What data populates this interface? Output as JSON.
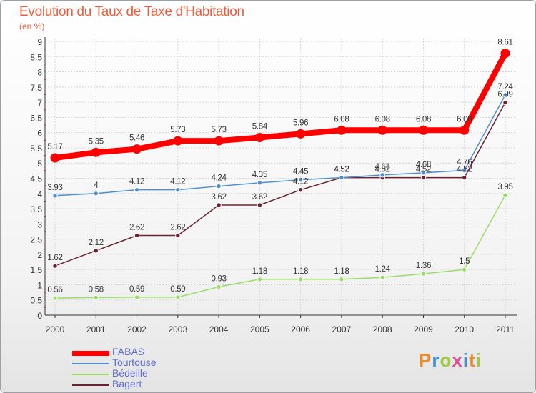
{
  "chart_data": {
    "type": "line",
    "title": "Evolution du Taux de Taxe d'Habitation",
    "subtitle": "(en %)",
    "x": [
      "2000",
      "2001",
      "2002",
      "2003",
      "2004",
      "2005",
      "2006",
      "2007",
      "2008",
      "2009",
      "2010",
      "2011"
    ],
    "ylim": [
      0,
      9
    ],
    "yticks": [
      "0",
      "0.5",
      "1",
      "1.5",
      "2",
      "2.5",
      "3",
      "3.5",
      "4",
      "4.5",
      "5",
      "5.5",
      "6",
      "6.5",
      "7",
      "7.5",
      "8",
      "8.5",
      "9"
    ],
    "grid": true,
    "legend": "bottom-left",
    "series": [
      {
        "name": "FABAS",
        "color": "#ff0000",
        "values": [
          5.17,
          5.35,
          5.46,
          5.73,
          5.73,
          5.84,
          5.96,
          6.08,
          6.08,
          6.08,
          6.08,
          8.61
        ],
        "labels": [
          "5.17",
          "5.35",
          "5.46",
          "5.73",
          "5.73",
          "5.84",
          "5.96",
          "6.08",
          "6.08",
          "6.08",
          "6.08",
          "8.61"
        ]
      },
      {
        "name": "Tourtouse",
        "color": "#4f8fd0",
        "values": [
          3.93,
          4,
          4.12,
          4.12,
          4.24,
          4.35,
          4.45,
          4.52,
          4.61,
          4.68,
          4.76,
          7.24
        ],
        "labels": [
          "3.93",
          "4",
          "4.12",
          "4.12",
          "4.24",
          "4.35",
          "4.45",
          "4.52",
          "4.61",
          "4.68",
          "4.76",
          "7.24"
        ]
      },
      {
        "name": "Bédeille",
        "color": "#99dd66",
        "values": [
          0.56,
          0.58,
          0.59,
          0.59,
          0.93,
          1.18,
          1.18,
          1.18,
          1.24,
          1.36,
          1.5,
          3.95
        ],
        "labels": [
          "0.56",
          "0.58",
          "0.59",
          "0.59",
          "0.93",
          "1.18",
          "1.18",
          "1.18",
          "1.24",
          "1.36",
          "1.5",
          "3.95"
        ]
      },
      {
        "name": "Bagert",
        "color": "#6b2230",
        "values": [
          1.62,
          2.12,
          2.62,
          2.62,
          3.62,
          3.62,
          4.12,
          4.52,
          4.52,
          4.52,
          4.52,
          6.99
        ],
        "labels": [
          "1.62",
          "2.12",
          "2.62",
          "2.62",
          "3.62",
          "3.62",
          "4.12",
          "4.52",
          "4.52",
          "4.52",
          "4.52",
          "6.99"
        ]
      }
    ]
  },
  "branding": {
    "logo_text": "Proxiti"
  }
}
